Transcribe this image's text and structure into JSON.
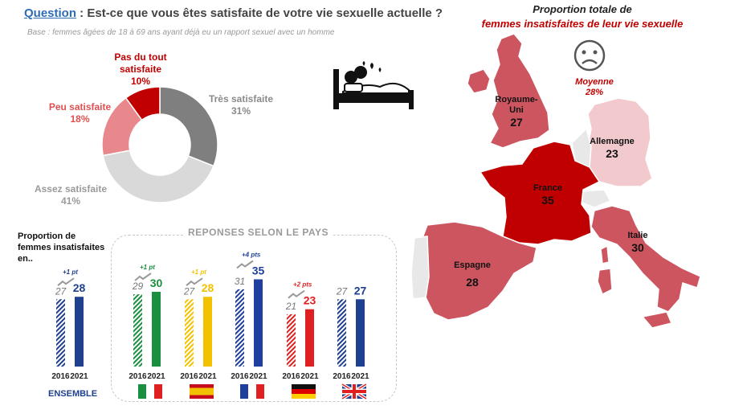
{
  "question": {
    "label": "Question",
    "text": " : Est-ce que vous êtes satisfaite de votre vie sexuelle actuelle ?",
    "base": "Base :  femmes âgées de 18 à 69 ans ayant déjà eu un rapport sexuel avec un homme"
  },
  "colors": {
    "tres": "#7f7f7f",
    "assez": "#d9d9d9",
    "peu": "#e8888c",
    "pas": "#c00000",
    "ensemble": "#1f3f8f",
    "italie": "#1a8f3f",
    "espagne": "#f2c200",
    "france": "#1f3f9f",
    "allemagne": "#e02020",
    "royaume_uni": "#1f3f8f",
    "map_dark": "#c00000",
    "map_mid": "#cc5560",
    "map_light": "#f2c9cc",
    "map_grey": "#e8e8e8"
  },
  "icons": {
    "bed": "bed-couple-icon",
    "sad": "sad-face-icon"
  },
  "chart_data": [
    {
      "type": "pie",
      "subtype": "donut",
      "title": "Est-ce que vous êtes satisfaite de votre vie sexuelle actuelle ?",
      "slices": [
        {
          "label": "Très satisfaite",
          "value": 31,
          "pct": "31%",
          "color": "#7f7f7f"
        },
        {
          "label": "Assez satisfaite",
          "value": 41,
          "pct": "41%",
          "color": "#d9d9d9"
        },
        {
          "label": "Peu satisfaite",
          "value": 18,
          "pct": "18%",
          "color": "#e8888c"
        },
        {
          "label": "Pas du tout satisfaite",
          "value": 10,
          "pct": "10%",
          "color": "#c00000"
        }
      ]
    },
    {
      "type": "bar",
      "title": "REPONSES SELON  LE PAYS",
      "ylabel": "Proportion de femmes insatisfaites en..",
      "ylim": [
        0,
        40
      ],
      "categories": [
        "2016",
        "2021"
      ],
      "groups": [
        {
          "name": "ENSEMBLE",
          "values": [
            27,
            28
          ],
          "delta": "+1 pt",
          "color": "#1f3f8f"
        },
        {
          "name": "Italie",
          "values": [
            29,
            30
          ],
          "delta": "+1 pt",
          "color": "#1a8f3f"
        },
        {
          "name": "Espagne",
          "values": [
            27,
            28
          ],
          "delta": "+1 pt",
          "color": "#f2c200"
        },
        {
          "name": "France",
          "values": [
            31,
            35
          ],
          "delta": "+4 pts",
          "color": "#1f3f9f"
        },
        {
          "name": "Allemagne",
          "values": [
            21,
            23
          ],
          "delta": "+2 pts",
          "color": "#e02020"
        },
        {
          "name": "Royaume-Uni",
          "values": [
            27,
            27
          ],
          "delta": "",
          "color": "#1f3f8f"
        }
      ]
    }
  ],
  "map": {
    "title_1": "Proportion totale de",
    "title_2": "femmes insatisfaites de leur vie sexuelle",
    "moyenne_label": "Moyenne",
    "moyenne_value": "28%",
    "countries": {
      "royaume_uni": {
        "name_1": "Royaume-",
        "name_2": "Uni",
        "value": "27"
      },
      "allemagne": {
        "name": "Allemagne",
        "value": "23"
      },
      "france": {
        "name": "France",
        "value": "35"
      },
      "italie": {
        "name": "Italie",
        "value": "30"
      },
      "espagne": {
        "name": "Espagne",
        "value": "28"
      }
    }
  },
  "bars_text": {
    "prop_label": "Proportion de femmes insatisfaites en..",
    "ensemble_label": "ENSEMBLE"
  }
}
